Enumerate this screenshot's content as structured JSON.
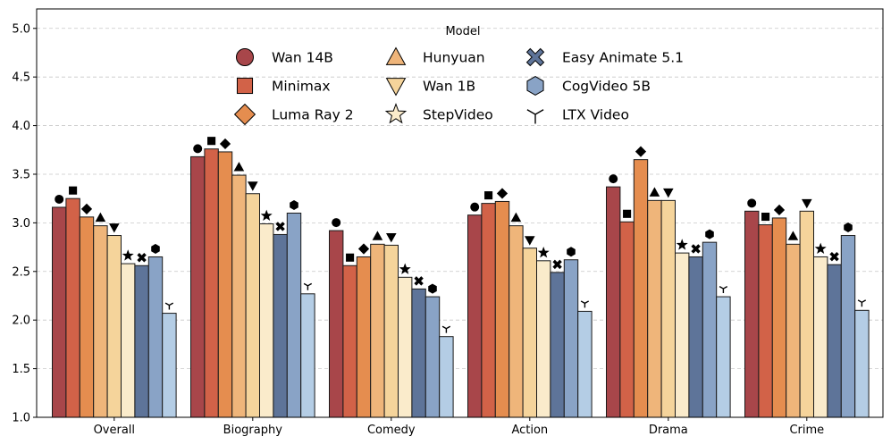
{
  "chart_data": {
    "type": "bar",
    "title": "",
    "xlabel": "",
    "ylabel": "",
    "ylim": [
      1.0,
      5.2
    ],
    "yticks": [
      1.0,
      1.5,
      2.0,
      2.5,
      3.0,
      3.5,
      4.0,
      4.5,
      5.0
    ],
    "ytick_labels": [
      "1.0",
      "1.5",
      "2.0",
      "2.5",
      "3.0",
      "3.5",
      "4.0",
      "4.5",
      "5.0"
    ],
    "grid": "horizontal dashed",
    "categories": [
      "Overall",
      "Biography",
      "Comedy",
      "Action",
      "Drama",
      "Crime"
    ],
    "legend": {
      "title": "Model",
      "placement": "top-center",
      "columns": 3
    },
    "series": [
      {
        "name": "Wan 14B",
        "color": "#A8464A",
        "marker": "circle",
        "values": [
          3.16,
          3.68,
          2.92,
          3.08,
          3.37,
          3.12
        ]
      },
      {
        "name": "Minimax",
        "color": "#D26248",
        "marker": "square",
        "values": [
          3.25,
          3.76,
          2.56,
          3.2,
          3.01,
          2.98
        ]
      },
      {
        "name": "Luma Ray 2",
        "color": "#E58D4F",
        "marker": "diamond",
        "values": [
          3.06,
          3.73,
          2.65,
          3.22,
          3.65,
          3.05
        ]
      },
      {
        "name": "Hunyuan",
        "color": "#EFB57A",
        "marker": "triangle-up",
        "values": [
          2.97,
          3.49,
          2.78,
          2.97,
          3.23,
          2.78
        ]
      },
      {
        "name": "Wan 1B",
        "color": "#F5D49B",
        "marker": "triangle-down",
        "values": [
          2.87,
          3.3,
          2.77,
          2.74,
          3.23,
          3.12
        ]
      },
      {
        "name": "StepVideo",
        "color": "#FAEBCB",
        "marker": "star",
        "values": [
          2.58,
          2.99,
          2.44,
          2.61,
          2.69,
          2.65
        ]
      },
      {
        "name": "Easy Animate 5.1",
        "color": "#5E7499",
        "marker": "x",
        "values": [
          2.56,
          2.88,
          2.32,
          2.49,
          2.65,
          2.57
        ]
      },
      {
        "name": "CogVideo 5B",
        "color": "#89A3C6",
        "marker": "hexagon",
        "values": [
          2.65,
          3.1,
          2.24,
          2.62,
          2.8,
          2.87
        ]
      },
      {
        "name": "LTX Video",
        "color": "#B4CDE5",
        "marker": "tri-down",
        "values": [
          2.07,
          2.27,
          1.83,
          2.09,
          2.24,
          2.1
        ]
      }
    ]
  }
}
